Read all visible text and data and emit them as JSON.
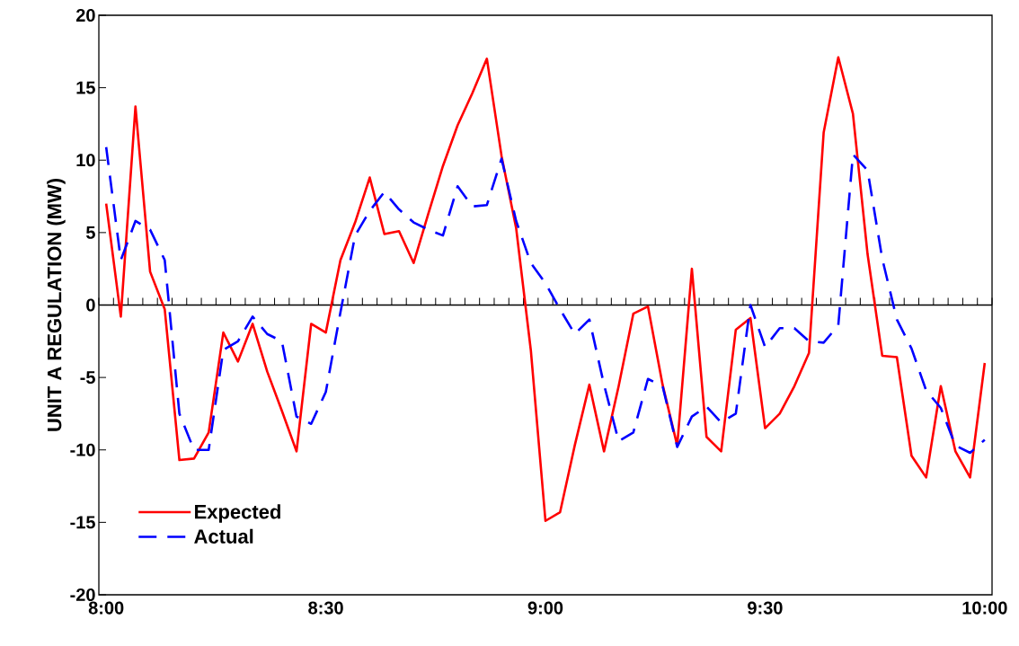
{
  "chart_data": {
    "type": "line",
    "ylabel": "UNIT A REGULATION (MW)",
    "categories": [
      "8:00",
      null,
      null,
      null,
      null,
      null,
      null,
      null,
      null,
      null,
      null,
      null,
      null,
      null,
      null,
      "8:30",
      null,
      null,
      null,
      null,
      null,
      null,
      null,
      null,
      null,
      null,
      null,
      null,
      null,
      null,
      "9:00",
      null,
      null,
      null,
      null,
      null,
      null,
      null,
      null,
      null,
      null,
      null,
      null,
      null,
      null,
      "9:30",
      null,
      null,
      null,
      null,
      null,
      null,
      null,
      null,
      null,
      null,
      null,
      null,
      null,
      null,
      "10:00"
    ],
    "series": [
      {
        "name": "Expected",
        "color": "#ff0000",
        "line_style": "solid",
        "values": [
          7.0,
          -0.8,
          13.7,
          2.3,
          -0.3,
          -10.7,
          -10.6,
          -8.8,
          -1.9,
          -3.9,
          -1.3,
          -4.6,
          -7.3,
          -10.1,
          -1.3,
          -1.9,
          3.1,
          5.7,
          8.8,
          4.9,
          5.1,
          2.9,
          6.3,
          9.6,
          12.4,
          14.6,
          17.0,
          10.3,
          5.3,
          -3.1,
          -14.9,
          -14.3,
          -9.7,
          -5.5,
          -10.1,
          -5.6,
          -0.6,
          -0.1,
          -5.5,
          -9.7,
          2.5,
          -9.1,
          -10.1,
          -1.7,
          -0.9,
          -8.5,
          -7.5,
          -5.6,
          -3.3,
          11.9,
          17.1,
          13.2,
          3.5,
          -3.5,
          -3.6,
          -10.4,
          -11.9,
          -5.6,
          -10.1,
          -11.9,
          -4.0
        ]
      },
      {
        "name": "Actual",
        "color": "#0000ff",
        "line_style": "dashed",
        "values": [
          10.9,
          3.1,
          5.8,
          5.2,
          3.1,
          -7.5,
          -10.0,
          -10.0,
          -3.1,
          -2.5,
          -0.8,
          -2.0,
          -2.5,
          -7.7,
          -8.2,
          -6.0,
          -0.5,
          4.8,
          6.5,
          7.8,
          6.6,
          5.7,
          5.2,
          4.8,
          8.2,
          6.8,
          6.9,
          10.1,
          5.8,
          2.9,
          1.5,
          -0.3,
          -2.0,
          -1.0,
          -5.5,
          -9.4,
          -8.8,
          -5.1,
          -5.6,
          -9.8,
          -7.7,
          -7.0,
          -8.1,
          -7.5,
          0.0,
          -2.9,
          -1.6,
          -1.6,
          -2.5,
          -2.6,
          -1.4,
          10.4,
          9.3,
          3.2,
          -1.0,
          -3.0,
          -5.9,
          -7.1,
          -9.7,
          -10.2,
          -9.3
        ]
      }
    ],
    "ylim": [
      -20,
      20
    ],
    "yticks": [
      -20,
      -15,
      -10,
      -5,
      0,
      5,
      10,
      15,
      20
    ],
    "legend": "bottom left"
  }
}
